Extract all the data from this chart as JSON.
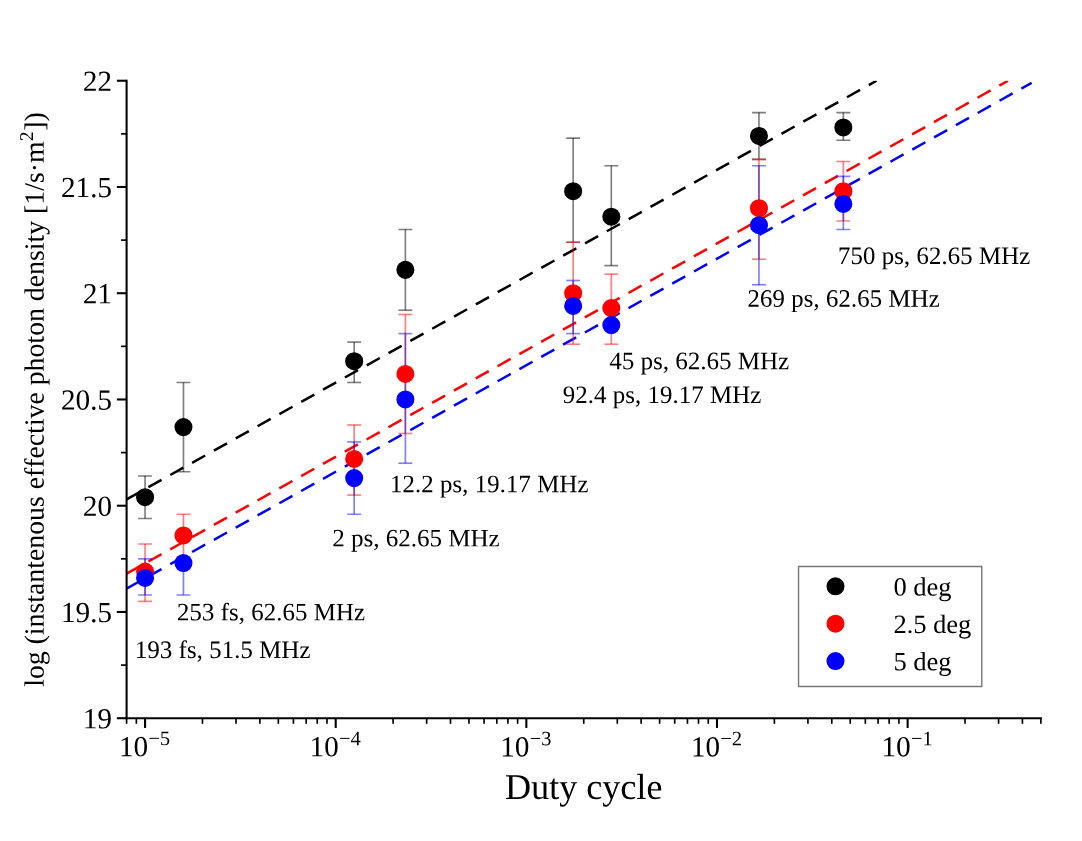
{
  "chart_data": {
    "type": "scatter",
    "xlabel": "Duty cycle",
    "ylabel": "log (instantenous effective photon density [1/s·m$^{2}$])",
    "log": "x",
    "xlim": [
      8e-06,
      0.5
    ],
    "ylim": [
      19,
      22
    ],
    "xticks": [
      {
        "value": 1e-05,
        "label": "10$^{−5}$"
      },
      {
        "value": 0.0001,
        "label": "10$^{−4}$"
      },
      {
        "value": 0.001,
        "label": "10$^{−3}$"
      },
      {
        "value": 0.01,
        "label": "10$^{−2}$"
      },
      {
        "value": 0.1,
        "label": "10$^{−1}$"
      }
    ],
    "yticks": [
      19,
      19.5,
      20,
      20.5,
      21,
      21.5,
      22
    ],
    "x": [
      1e-05,
      1.59e-05,
      0.000125,
      0.000232,
      0.00176,
      0.00279,
      0.0166,
      0.046
    ],
    "legend": "bottom right",
    "grid": false,
    "series": [
      {
        "name": "0 deg",
        "marker": "circle",
        "color": "#000000",
        "values": [
          20.04,
          20.37,
          20.68,
          21.11,
          21.48,
          21.36,
          21.74,
          21.78
        ],
        "errors": [
          [
            19.94,
            20.14
          ],
          [
            20.16,
            20.58
          ],
          [
            20.58,
            20.77
          ],
          [
            20.92,
            21.3
          ],
          [
            21.24,
            21.73
          ],
          [
            21.13,
            21.6
          ],
          [
            21.63,
            21.85
          ],
          [
            21.72,
            21.85
          ]
        ]
      },
      {
        "name": "2.5 deg",
        "marker": "circle",
        "color": "#ff0000",
        "values": [
          19.69,
          19.86,
          20.22,
          20.62,
          21.0,
          20.93,
          21.4,
          21.48
        ],
        "errors": [
          [
            19.55,
            19.82
          ],
          [
            19.76,
            19.96
          ],
          [
            20.05,
            20.38
          ],
          [
            20.34,
            20.9
          ],
          [
            20.76,
            21.24
          ],
          [
            20.76,
            21.09
          ],
          [
            21.16,
            21.63
          ],
          [
            21.34,
            21.62
          ]
        ]
      },
      {
        "name": "5 deg",
        "marker": "circle",
        "color": "#0000ff",
        "values": [
          19.66,
          19.73,
          20.13,
          20.5,
          20.94,
          20.85,
          21.32,
          21.42
        ],
        "errors": [
          [
            19.58,
            19.75
          ],
          [
            19.58,
            19.73
          ],
          [
            19.96,
            20.3
          ],
          [
            20.2,
            20.81
          ],
          [
            20.81,
            21.06
          ],
          null,
          [
            21.04,
            21.6
          ],
          [
            21.3,
            21.55
          ]
        ]
      },
      {
        "type": "line",
        "line_style": "dashed",
        "color": "#000000",
        "x": [
          8e-06,
          0.0687
        ],
        "values": [
          20.03,
          22.0
        ]
      },
      {
        "type": "line",
        "line_style": "dashed",
        "color": "#ff0000",
        "x": [
          8e-06,
          0.336
        ],
        "values": [
          19.68,
          22.0
        ]
      },
      {
        "type": "line",
        "line_style": "dashed",
        "color": "#0000ff",
        "x": [
          8e-06,
          0.447
        ],
        "values": [
          19.61,
          21.99
        ]
      }
    ],
    "annotations": [
      "193 fs, 51.5 MHz",
      "253 fs, 62.65 MHz",
      "2 ps, 62.65 MHz",
      "12.2 ps, 19.17 MHz",
      "92.4 ps, 19.17 MHz",
      "45 ps, 62.65 MHz",
      "269 ps, 62.65 MHz",
      "750 ps, 62.65 MHz"
    ]
  }
}
